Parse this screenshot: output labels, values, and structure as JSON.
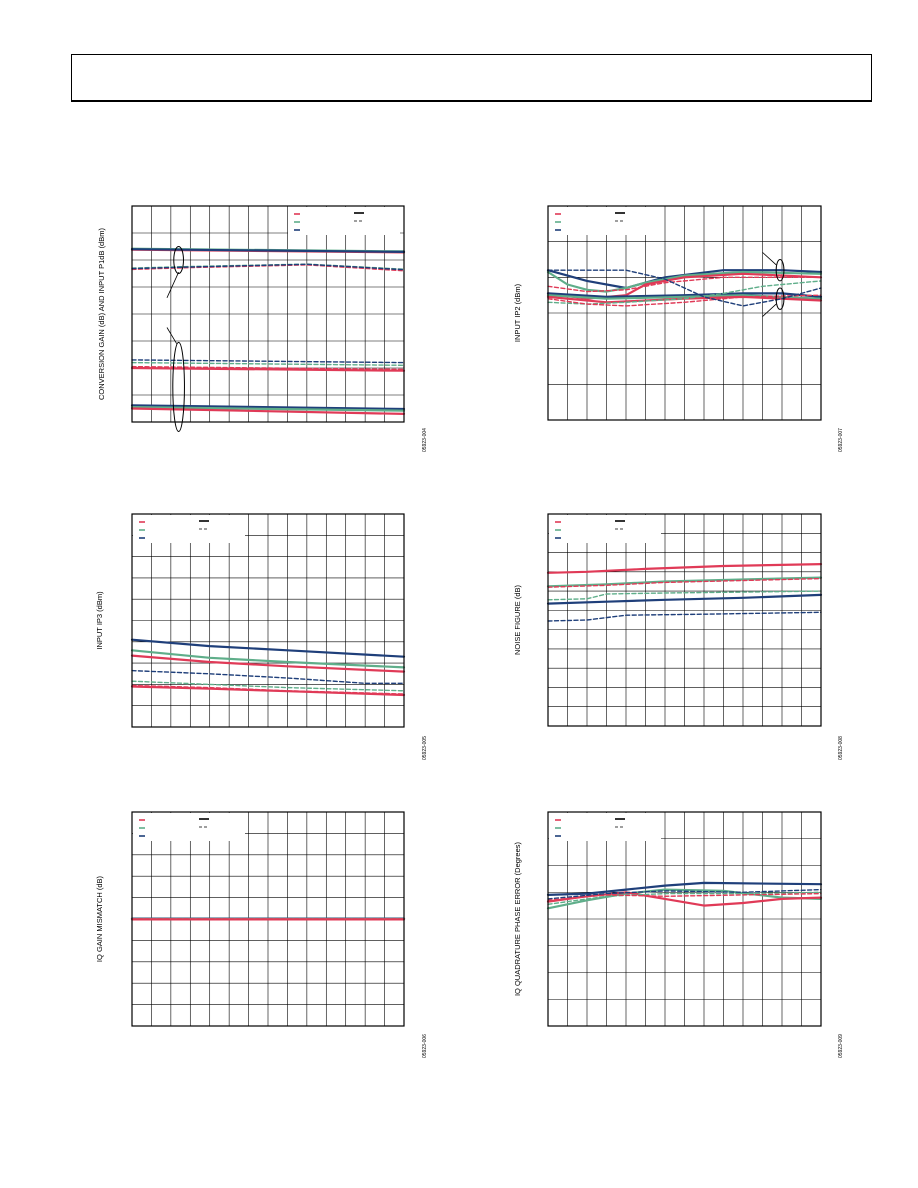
{
  "colors": {
    "red": "#e03a57",
    "green": "#5fae8a",
    "blue": "#1f3f7a",
    "grid": "#000000"
  },
  "chart_data": [
    {
      "id": "p1",
      "type": "line",
      "ylabel": "CONVERSION GAIN (dB) AND INPUT P1dB (dBm)",
      "figure_id": "05923-004",
      "grid": true,
      "xlim": [
        0,
        14
      ],
      "ylim": [
        0,
        8
      ],
      "xcols": 14,
      "yrows": 8,
      "legend": {
        "placement": "top-right",
        "rows": 3
      },
      "annotations": [
        {
          "type": "ellipse",
          "cx": 2.4,
          "cy": 6.0,
          "rx": 0.25,
          "ry": 0.5
        },
        {
          "type": "ellipse",
          "cx": 2.4,
          "cy": 1.3,
          "rx": 0.3,
          "ry": 1.65
        },
        {
          "type": "line",
          "x1": 2.4,
          "y1": 5.55,
          "x2": 1.8,
          "y2": 4.6
        },
        {
          "type": "line",
          "x1": 2.3,
          "y1": 2.9,
          "x2": 1.8,
          "y2": 3.5
        }
      ],
      "series": [
        {
          "color": "red",
          "dash": false,
          "x": [
            0,
            14
          ],
          "y": [
            6.38,
            6.28
          ]
        },
        {
          "color": "green",
          "dash": false,
          "x": [
            0,
            14
          ],
          "y": [
            6.42,
            6.32
          ]
        },
        {
          "color": "blue",
          "dash": false,
          "x": [
            0,
            14
          ],
          "y": [
            6.4,
            6.3
          ]
        },
        {
          "color": "red",
          "dash": true,
          "x": [
            0,
            3,
            9,
            14
          ],
          "y": [
            5.65,
            5.72,
            5.82,
            5.6
          ]
        },
        {
          "color": "green",
          "dash": true,
          "x": [
            0,
            3,
            9,
            14
          ],
          "y": [
            5.7,
            5.76,
            5.85,
            5.66
          ]
        },
        {
          "color": "blue",
          "dash": true,
          "x": [
            0,
            3,
            9,
            14
          ],
          "y": [
            5.68,
            5.74,
            5.84,
            5.64
          ]
        },
        {
          "color": "blue",
          "dash": true,
          "x": [
            0,
            14
          ],
          "y": [
            2.3,
            2.2
          ]
        },
        {
          "color": "green",
          "dash": true,
          "x": [
            0,
            14
          ],
          "y": [
            2.2,
            2.1
          ]
        },
        {
          "color": "red",
          "dash": true,
          "x": [
            0,
            14
          ],
          "y": [
            2.05,
            1.95
          ]
        },
        {
          "color": "red",
          "dash": false,
          "x": [
            0,
            14
          ],
          "y": [
            2.0,
            1.9
          ]
        },
        {
          "color": "blue",
          "dash": false,
          "x": [
            0,
            14
          ],
          "y": [
            0.62,
            0.48
          ]
        },
        {
          "color": "green",
          "dash": false,
          "x": [
            0,
            14
          ],
          "y": [
            0.55,
            0.42
          ]
        },
        {
          "color": "red",
          "dash": false,
          "x": [
            0,
            14
          ],
          "y": [
            0.5,
            0.3
          ]
        }
      ]
    },
    {
      "id": "p2",
      "type": "line",
      "ylabel": "INPUT IP2 (dBm)",
      "figure_id": "05923-007",
      "grid": true,
      "xlim": [
        0,
        14
      ],
      "ylim": [
        0,
        6
      ],
      "xcols": 14,
      "yrows": 6,
      "legend": {
        "placement": "top-left",
        "rows": 3
      },
      "annotations": [
        {
          "type": "ellipse",
          "cx": 11.9,
          "cy": 4.2,
          "rx": 0.2,
          "ry": 0.3
        },
        {
          "type": "ellipse",
          "cx": 11.9,
          "cy": 3.4,
          "rx": 0.2,
          "ry": 0.3
        },
        {
          "type": "line",
          "x1": 11.7,
          "y1": 4.35,
          "x2": 11.0,
          "y2": 4.7
        },
        {
          "type": "line",
          "x1": 11.7,
          "y1": 3.25,
          "x2": 11.0,
          "y2": 2.9
        }
      ],
      "series": [
        {
          "color": "blue",
          "dash": false,
          "x": [
            0,
            2,
            4,
            6,
            9,
            12,
            14
          ],
          "y": [
            4.2,
            3.9,
            3.7,
            4.0,
            4.2,
            4.2,
            4.15
          ]
        },
        {
          "color": "green",
          "dash": false,
          "x": [
            0,
            1,
            2,
            3,
            4,
            5,
            7,
            10,
            14
          ],
          "y": [
            4.15,
            3.8,
            3.65,
            3.6,
            3.7,
            3.85,
            4.05,
            4.15,
            4.1
          ]
        },
        {
          "color": "red",
          "dash": false,
          "x": [
            0,
            2,
            4,
            5,
            7,
            10,
            14
          ],
          "y": [
            3.55,
            3.4,
            3.5,
            3.8,
            4.0,
            4.1,
            4.0
          ]
        },
        {
          "color": "red",
          "dash": true,
          "x": [
            0,
            2,
            4,
            6,
            9,
            14
          ],
          "y": [
            3.75,
            3.6,
            3.65,
            3.85,
            4.0,
            4.0
          ]
        },
        {
          "color": "blue",
          "dash": false,
          "x": [
            0,
            3,
            7,
            10,
            12,
            14
          ],
          "y": [
            3.55,
            3.45,
            3.5,
            3.55,
            3.55,
            3.45
          ]
        },
        {
          "color": "green",
          "dash": false,
          "x": [
            0,
            3,
            7,
            10,
            14
          ],
          "y": [
            3.5,
            3.4,
            3.45,
            3.5,
            3.4
          ]
        },
        {
          "color": "red",
          "dash": false,
          "x": [
            0,
            3,
            7,
            10,
            14
          ],
          "y": [
            3.45,
            3.3,
            3.4,
            3.45,
            3.35
          ]
        },
        {
          "color": "green",
          "dash": true,
          "x": [
            0,
            2,
            4,
            7,
            9,
            11,
            14
          ],
          "y": [
            3.3,
            3.25,
            3.3,
            3.4,
            3.55,
            3.75,
            3.9
          ]
        },
        {
          "color": "red",
          "dash": true,
          "x": [
            0,
            2,
            4,
            7,
            10,
            14
          ],
          "y": [
            3.4,
            3.25,
            3.2,
            3.3,
            3.45,
            3.5
          ]
        },
        {
          "color": "blue",
          "dash": true,
          "x": [
            0,
            4,
            6,
            8,
            10,
            12,
            14
          ],
          "y": [
            4.2,
            4.2,
            3.95,
            3.45,
            3.2,
            3.4,
            3.7
          ]
        }
      ]
    },
    {
      "id": "p3",
      "type": "line",
      "ylabel": "INPUT IP3 (dBm)",
      "figure_id": "05923-005",
      "grid": true,
      "xlim": [
        0,
        14
      ],
      "ylim": [
        0,
        10
      ],
      "xcols": 14,
      "yrows": 10,
      "legend": {
        "placement": "top-left",
        "rows": 3
      },
      "annotations": [],
      "series": [
        {
          "color": "blue",
          "dash": false,
          "x": [
            0,
            4,
            8,
            14
          ],
          "y": [
            4.1,
            3.8,
            3.6,
            3.3
          ]
        },
        {
          "color": "green",
          "dash": false,
          "x": [
            0,
            4,
            8,
            14
          ],
          "y": [
            3.6,
            3.25,
            3.05,
            2.8
          ]
        },
        {
          "color": "red",
          "dash": false,
          "x": [
            0,
            4,
            8,
            14
          ],
          "y": [
            3.35,
            3.05,
            2.85,
            2.6
          ]
        },
        {
          "color": "blue",
          "dash": true,
          "x": [
            0,
            4,
            8,
            12,
            14
          ],
          "y": [
            2.65,
            2.5,
            2.3,
            2.05,
            2.05
          ]
        },
        {
          "color": "green",
          "dash": true,
          "x": [
            0,
            4,
            8,
            14
          ],
          "y": [
            2.15,
            2.0,
            1.85,
            1.7
          ]
        },
        {
          "color": "red",
          "dash": true,
          "x": [
            0,
            4,
            8,
            14
          ],
          "y": [
            1.95,
            1.85,
            1.7,
            1.55
          ]
        },
        {
          "color": "red",
          "dash": false,
          "x": [
            0,
            4,
            8,
            14
          ],
          "y": [
            1.9,
            1.8,
            1.68,
            1.5
          ]
        }
      ]
    },
    {
      "id": "p4",
      "type": "line",
      "ylabel": "NOISE FIGURE (dB)",
      "figure_id": "05923-008",
      "grid": true,
      "xlim": [
        0,
        14
      ],
      "ylim": [
        0,
        11
      ],
      "xcols": 14,
      "yrows": 11,
      "legend": {
        "placement": "top-left",
        "rows": 3
      },
      "annotations": [],
      "series": [
        {
          "color": "red",
          "dash": false,
          "x": [
            0,
            2,
            5,
            9,
            14
          ],
          "y": [
            7.95,
            8.0,
            8.15,
            8.3,
            8.4
          ]
        },
        {
          "color": "green",
          "dash": false,
          "x": [
            0,
            3,
            6,
            10,
            14
          ],
          "y": [
            7.25,
            7.35,
            7.5,
            7.6,
            7.7
          ]
        },
        {
          "color": "red",
          "dash": true,
          "x": [
            0,
            3,
            6,
            10,
            14
          ],
          "y": [
            7.2,
            7.3,
            7.45,
            7.55,
            7.65
          ]
        },
        {
          "color": "green",
          "dash": true,
          "x": [
            0,
            2,
            3,
            6,
            10,
            14
          ],
          "y": [
            6.55,
            6.6,
            6.85,
            6.9,
            6.95,
            7.0
          ]
        },
        {
          "color": "blue",
          "dash": false,
          "x": [
            0,
            3,
            6,
            10,
            14
          ],
          "y": [
            6.35,
            6.45,
            6.55,
            6.65,
            6.8
          ]
        },
        {
          "color": "blue",
          "dash": true,
          "x": [
            0,
            2,
            4,
            8,
            14
          ],
          "y": [
            5.45,
            5.5,
            5.75,
            5.8,
            5.9
          ]
        }
      ]
    },
    {
      "id": "p5",
      "type": "line",
      "ylabel": "IQ GAIN MISMATCH (dB)",
      "figure_id": "05923-006",
      "grid": true,
      "xlim": [
        0,
        14
      ],
      "ylim": [
        0,
        10
      ],
      "xcols": 14,
      "yrows": 10,
      "legend": {
        "placement": "top-left",
        "rows": 3
      },
      "annotations": [],
      "series": [
        {
          "color": "blue",
          "dash": false,
          "x": [
            0,
            14
          ],
          "y": [
            5.02,
            5.02
          ]
        },
        {
          "color": "green",
          "dash": false,
          "x": [
            0,
            14
          ],
          "y": [
            5.0,
            5.0
          ]
        },
        {
          "color": "red",
          "dash": false,
          "x": [
            0,
            14
          ],
          "y": [
            4.98,
            4.98
          ]
        },
        {
          "color": "red",
          "dash": true,
          "x": [
            0,
            14
          ],
          "y": [
            5.0,
            5.0
          ]
        }
      ]
    },
    {
      "id": "p6",
      "type": "line",
      "ylabel": "IQ QUADRATURE PHASE ERROR (Degrees)",
      "figure_id": "05923-009",
      "grid": true,
      "xlim": [
        0,
        14
      ],
      "ylim": [
        0,
        8
      ],
      "xcols": 14,
      "yrows": 8,
      "legend": {
        "placement": "top-left",
        "rows": 3
      },
      "annotations": [],
      "series": [
        {
          "color": "blue",
          "dash": false,
          "x": [
            0,
            2,
            4,
            6,
            8,
            14
          ],
          "y": [
            4.9,
            4.95,
            5.1,
            5.25,
            5.35,
            5.3
          ]
        },
        {
          "color": "green",
          "dash": false,
          "x": [
            0,
            2,
            4,
            6,
            9,
            12,
            14
          ],
          "y": [
            4.4,
            4.7,
            4.95,
            5.1,
            5.05,
            4.8,
            4.75
          ]
        },
        {
          "color": "red",
          "dash": false,
          "x": [
            0,
            2,
            4,
            6,
            8,
            10,
            12,
            14
          ],
          "y": [
            4.65,
            4.85,
            5.0,
            4.75,
            4.5,
            4.6,
            4.75,
            4.8
          ]
        },
        {
          "color": "blue",
          "dash": true,
          "x": [
            0,
            3,
            6,
            10,
            14
          ],
          "y": [
            4.75,
            4.95,
            5.05,
            5.0,
            5.1
          ]
        },
        {
          "color": "green",
          "dash": true,
          "x": [
            0,
            3,
            6,
            10,
            14
          ],
          "y": [
            4.55,
            4.85,
            4.95,
            4.95,
            5.0
          ]
        },
        {
          "color": "red",
          "dash": true,
          "x": [
            0,
            3,
            6,
            10,
            14
          ],
          "y": [
            4.7,
            4.9,
            4.85,
            4.9,
            4.95
          ]
        }
      ]
    }
  ]
}
